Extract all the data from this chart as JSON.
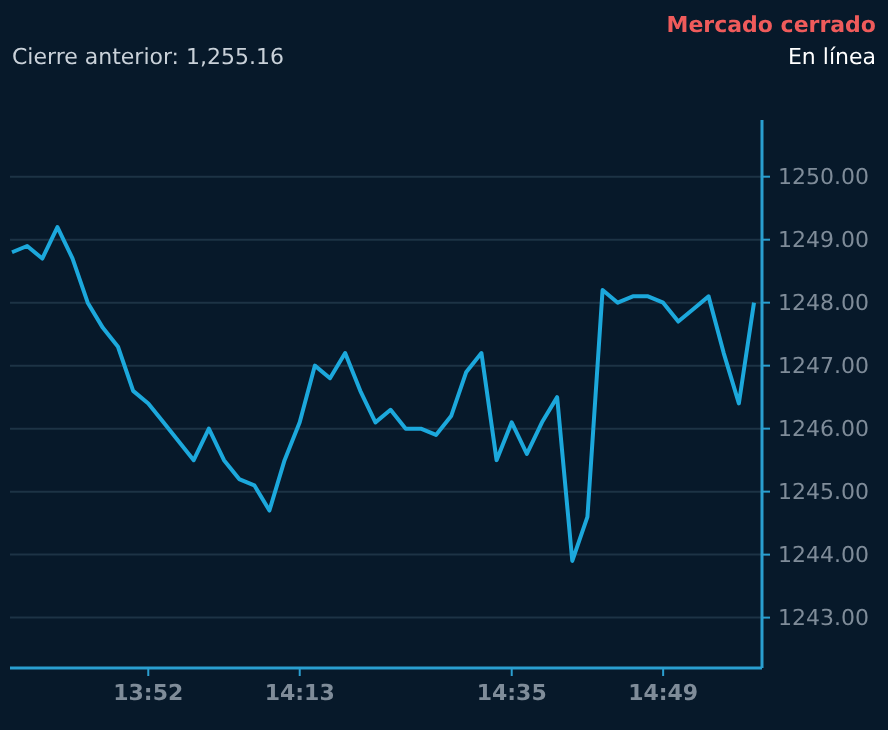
{
  "chart_data": {
    "type": "line",
    "subtitle": "Cierre anterior: 1,255.16",
    "annotations": [
      "Mercado cerrado",
      "En línea"
    ],
    "categories": [
      null,
      null,
      null,
      null,
      null,
      null,
      null,
      null,
      null,
      "13:52",
      null,
      null,
      null,
      null,
      null,
      null,
      null,
      null,
      null,
      "14:13",
      null,
      null,
      null,
      null,
      null,
      null,
      null,
      null,
      null,
      null,
      null,
      null,
      null,
      "14:35",
      null,
      null,
      null,
      null,
      null,
      null,
      null,
      null,
      null,
      "14:49",
      null,
      null,
      null,
      null,
      null,
      null
    ],
    "series": [
      {
        "color": "#1ca8dc",
        "values": [
          1248.8,
          1248.9,
          1248.7,
          1249.2,
          1248.7,
          1248.0,
          1247.6,
          1247.3,
          1246.6,
          1246.4,
          1246.1,
          1245.8,
          1245.5,
          1246.0,
          1245.5,
          1245.2,
          1245.1,
          1244.7,
          1245.5,
          1246.1,
          1247.0,
          1246.8,
          1247.2,
          1246.6,
          1246.1,
          1246.3,
          1246.0,
          1246.0,
          1245.9,
          1246.2,
          1246.9,
          1247.2,
          1245.5,
          1246.1,
          1245.6,
          1246.1,
          1246.5,
          1243.9,
          1244.6,
          1248.2,
          1248.0,
          1248.1,
          1248.1,
          1248.0,
          1247.7,
          1247.9,
          1248.1,
          1247.2,
          1246.4,
          1248.0
        ]
      }
    ],
    "ylim": [
      1242.2,
      1250.9
    ],
    "yticks": [
      {
        "value": 1243,
        "label": "1243.00"
      },
      {
        "value": 1244,
        "label": "1244.00"
      },
      {
        "value": 1245,
        "label": "1245.00"
      },
      {
        "value": 1246,
        "label": "1246.00"
      },
      {
        "value": 1247,
        "label": "1247.00"
      },
      {
        "value": 1248,
        "label": "1248.00"
      },
      {
        "value": 1249,
        "label": "1249.00"
      },
      {
        "value": 1250,
        "label": "1250.00"
      }
    ],
    "grid": "y",
    "marker": "none",
    "line_style": "solid"
  }
}
